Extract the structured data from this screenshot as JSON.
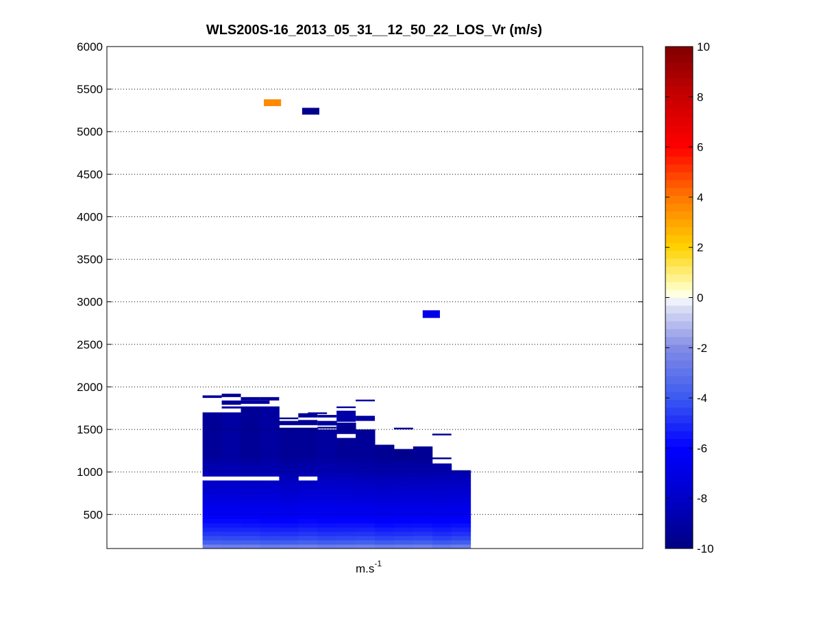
{
  "chart_data": {
    "type": "heatmap",
    "title": "WLS200S-16_2013_05_31__12_50_22_LOS_Vr (m/s)",
    "xlabel": "m.s",
    "xlabel_sup": "-1",
    "ylabel": "",
    "ylim": [
      100,
      6000
    ],
    "yticks": [
      "500",
      "1000",
      "1500",
      "2000",
      "2500",
      "3000",
      "3500",
      "4000",
      "4500",
      "5000",
      "5500",
      "6000"
    ],
    "grid": "horizontal-dotted",
    "colorbar": {
      "min": -10,
      "max": 10,
      "ticks": [
        "-10",
        "-8",
        "-6",
        "-4",
        "-2",
        "0",
        "2",
        "4",
        "6",
        "8",
        "10"
      ]
    },
    "cell_height_m": 100,
    "columns": [
      {
        "x": 0,
        "base": 100,
        "top": 1700,
        "near": -2.5,
        "far": -9.3,
        "gaps": [
          900
        ]
      },
      {
        "x": 1,
        "base": 100,
        "top": 1770,
        "near": -2.6,
        "far": -9.2,
        "gaps": [
          1680,
          900
        ]
      },
      {
        "x": 2,
        "base": 100,
        "top": 1770,
        "near": -2.5,
        "far": -9.4,
        "gaps": [
          880
        ]
      },
      {
        "x": 3,
        "base": 100,
        "top": 1770,
        "near": -2.7,
        "far": -9.3,
        "gaps": [
          900
        ]
      },
      {
        "x": 4,
        "base": 100,
        "top": 1520,
        "near": -2.6,
        "far": -9.5,
        "gaps": []
      },
      {
        "x": 5,
        "base": 100,
        "top": 1520,
        "near": -2.5,
        "far": -9.4,
        "gaps": [
          900
        ]
      },
      {
        "x": 6,
        "base": 100,
        "top": 1600,
        "near": -2.7,
        "far": -9.3,
        "gaps": [
          1500
        ]
      },
      {
        "x": 7,
        "base": 100,
        "top": 1580,
        "near": -2.6,
        "far": -9.4,
        "gaps": [
          1400
        ]
      },
      {
        "x": 8,
        "base": 100,
        "top": 1500,
        "near": -2.5,
        "far": -9.5,
        "gaps": []
      },
      {
        "x": 9,
        "base": 100,
        "top": 1320,
        "near": -2.7,
        "far": -9.6,
        "gaps": []
      },
      {
        "x": 10,
        "base": 100,
        "top": 1270,
        "near": -2.6,
        "far": -9.6,
        "gaps": []
      },
      {
        "x": 11,
        "base": 100,
        "top": 1300,
        "near": -2.5,
        "far": -9.6,
        "gaps": []
      },
      {
        "x": 12,
        "base": 100,
        "top": 1100,
        "near": -2.8,
        "far": -9.5,
        "gaps": []
      },
      {
        "x": 13,
        "base": 100,
        "top": 1020,
        "near": -2.6,
        "far": -9.5,
        "gaps": []
      }
    ],
    "isolated_cells": [
      {
        "x0": 0,
        "x1": 1,
        "y0": 1870,
        "y1": 1900,
        "value": -9.3
      },
      {
        "x0": 1,
        "x1": 2,
        "y0": 1880,
        "y1": 1920,
        "value": -9.3
      },
      {
        "x0": 1,
        "x1": 2,
        "y0": 1790,
        "y1": 1840,
        "value": -9.3
      },
      {
        "x0": 2,
        "x1": 3,
        "y0": 1840,
        "y1": 1880,
        "value": -9.3
      },
      {
        "x0": 3,
        "x1": 4,
        "y0": 1840,
        "y1": 1880,
        "value": -9.3
      },
      {
        "x0": 2,
        "x1": 3.5,
        "y0": 1800,
        "y1": 1840,
        "value": -9.2
      },
      {
        "x0": 4,
        "x1": 5,
        "y0": 1620,
        "y1": 1640,
        "value": -9.4
      },
      {
        "x0": 4,
        "x1": 6,
        "y0": 1550,
        "y1": 1600,
        "value": -9.4
      },
      {
        "x0": 5,
        "x1": 6,
        "y0": 1590,
        "y1": 1610,
        "value": -9.4
      },
      {
        "x0": 7,
        "x1": 8,
        "y0": 1750,
        "y1": 1770,
        "value": -9.2
      },
      {
        "x0": 7,
        "x1": 8,
        "y0": 1590,
        "y1": 1720,
        "value": -8.9
      },
      {
        "x0": 6,
        "x1": 7,
        "y0": 1640,
        "y1": 1670,
        "value": -9.3
      },
      {
        "x0": 5.5,
        "x1": 6.5,
        "y0": 1680,
        "y1": 1700,
        "value": -9.3
      },
      {
        "x0": 6,
        "x1": 7,
        "y0": 1510,
        "y1": 1530,
        "value": -9.4
      },
      {
        "x0": 8,
        "x1": 9,
        "y0": 1600,
        "y1": 1660,
        "value": -9.1
      },
      {
        "x0": 8,
        "x1": 9,
        "y0": 1830,
        "y1": 1850,
        "value": -9.0
      },
      {
        "x0": 10,
        "x1": 11,
        "y0": 1500,
        "y1": 1520,
        "value": -9.5
      },
      {
        "x0": 12,
        "x1": 13,
        "y0": 1430,
        "y1": 1450,
        "value": -9.5
      },
      {
        "x0": 12,
        "x1": 13,
        "y0": 1150,
        "y1": 1170,
        "value": -9.5
      },
      {
        "x0": 5,
        "x1": 6,
        "y0": 1640,
        "y1": 1690,
        "value": -9.3
      },
      {
        "x0": 5,
        "x1": 6,
        "y0": 1600,
        "y1": 1610,
        "value": -9.3
      },
      {
        "x0": 5.2,
        "x1": 6.1,
        "y0": 5200,
        "y1": 5280,
        "value": -9.6
      },
      {
        "x0": 3.2,
        "x1": 4.1,
        "y0": 5300,
        "y1": 5380,
        "value": 3.6
      },
      {
        "x0": 11.5,
        "x1": 12.4,
        "y0": 2810,
        "y1": 2900,
        "value": -6.8
      }
    ],
    "xcells": 14,
    "xcell_range": [
      -5,
      23
    ]
  }
}
